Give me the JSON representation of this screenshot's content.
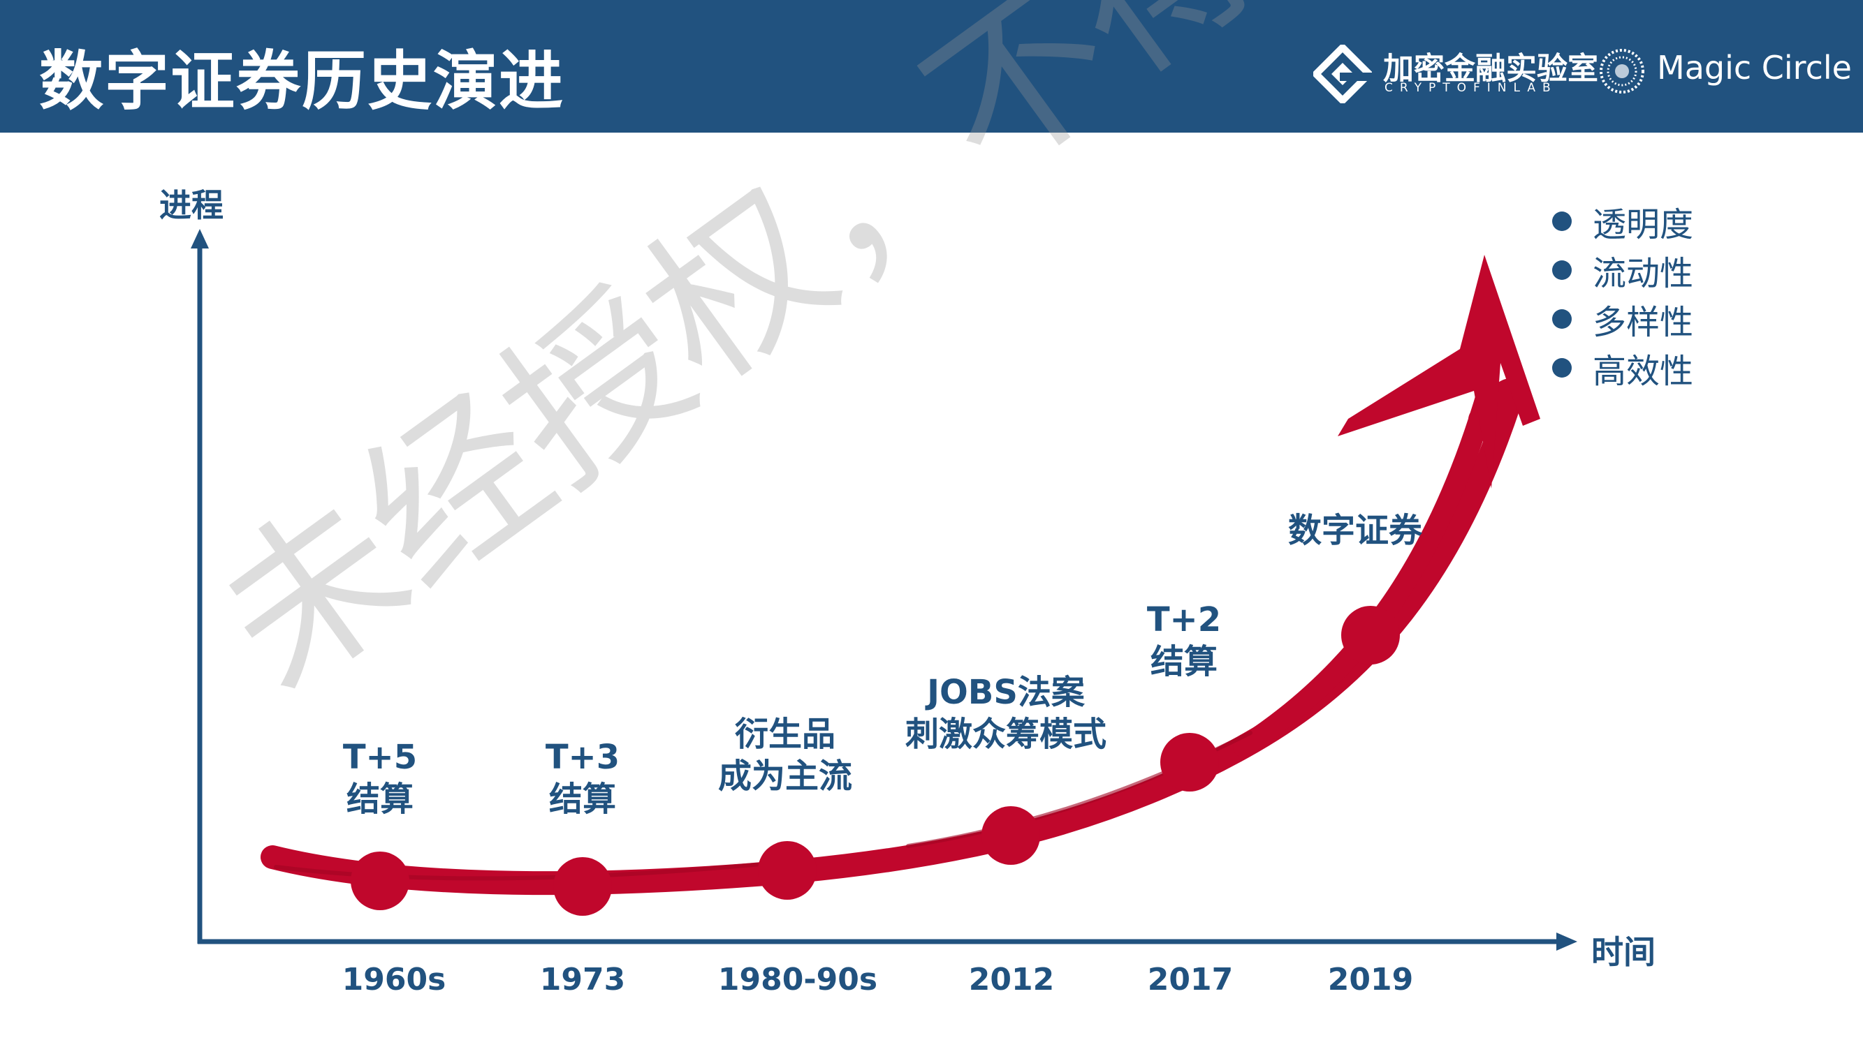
{
  "header": {
    "title": "数字证券历史演进",
    "logo_cryptofinlab_cn": "加密金融实验室",
    "logo_cryptofinlab_en": "CRYPTOFINLAB",
    "logo_magic_circle": "Magic Circle"
  },
  "axes": {
    "y_label": "进程",
    "x_label": "时间"
  },
  "timeline": [
    {
      "year": "1960s",
      "label_line1": "T+5",
      "label_line2": "结算"
    },
    {
      "year": "1973",
      "label_line1": "T+3",
      "label_line2": "结算"
    },
    {
      "year": "1980-90s",
      "label_line1": "衍生品",
      "label_line2": "成为主流"
    },
    {
      "year": "2012",
      "label_line1": "JOBS法案",
      "label_line2": "刺激众筹模式"
    },
    {
      "year": "2017",
      "label_line1": "T+2",
      "label_line2": "结算"
    },
    {
      "year": "2019",
      "label_line1": "数字证券",
      "label_line2": ""
    }
  ],
  "benefits": [
    "透明度",
    "流动性",
    "多样性",
    "高效性"
  ],
  "watermark": "未经授权，不得转载",
  "colors": {
    "header_bg": "#21527f",
    "accent_red": "#c0072c",
    "axis_blue": "#21527f",
    "text_blue": "#21527f"
  }
}
